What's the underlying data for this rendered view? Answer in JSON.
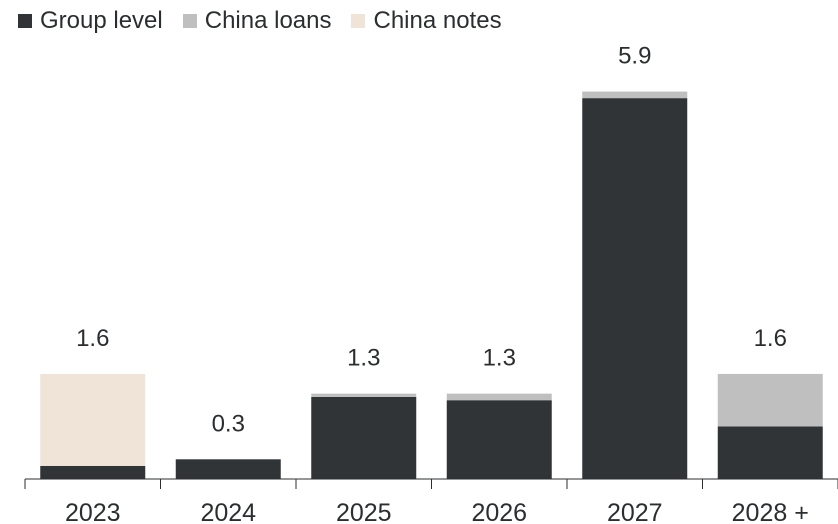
{
  "chart_data": {
    "type": "bar",
    "stacked": true,
    "categories": [
      "2023",
      "2024",
      "2025",
      "2026",
      "2027",
      "2028 +"
    ],
    "series": [
      {
        "name": "Group level",
        "color": "#303436",
        "values": [
          0.2,
          0.3,
          1.25,
          1.2,
          5.8,
          0.8
        ]
      },
      {
        "name": "China loans",
        "color": "#bfbfbf",
        "values": [
          0.0,
          0.0,
          0.05,
          0.1,
          0.1,
          0.8
        ]
      },
      {
        "name": "China notes",
        "color": "#efe4d7",
        "values": [
          1.4,
          0.0,
          0.0,
          0.0,
          0.0,
          0.0
        ]
      }
    ],
    "totals": [
      "1.6",
      "0.3",
      "1.3",
      "1.3",
      "5.9",
      "1.6"
    ],
    "ylim": [
      0,
      6.0
    ],
    "legend_position": "top-left",
    "grid": false
  }
}
